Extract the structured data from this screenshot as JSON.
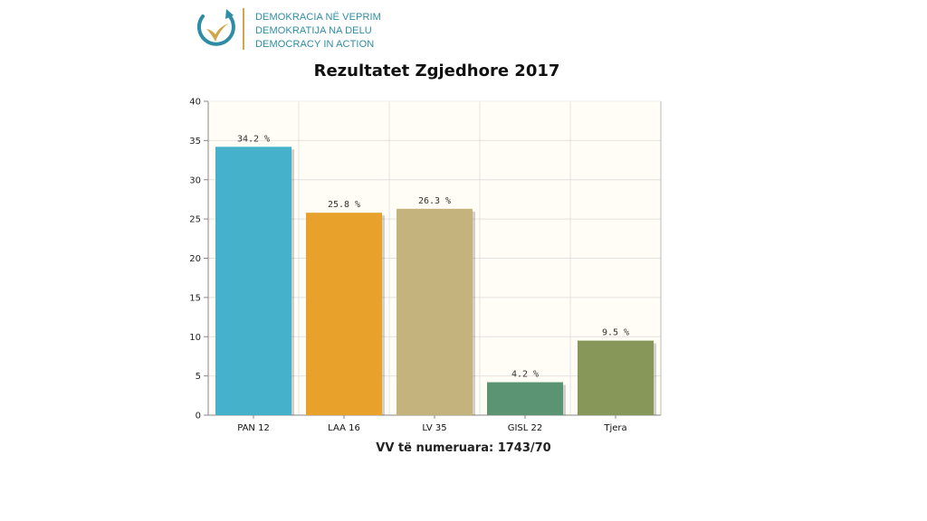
{
  "logo": {
    "icon": "circular-arrow-bird-icon",
    "lines": [
      "DEMOKRACIA NË VEPRIM",
      "DEMOKRATIJA NA DELU",
      "DEMOCRACY IN ACTION"
    ],
    "colors": {
      "ring": "#2e8da4",
      "bird": "#cfa64a",
      "text": "#2e8da4"
    }
  },
  "chart_data": {
    "type": "bar",
    "title": "Rezultatet Zgjedhore 2017",
    "xlabel": "",
    "ylabel": "",
    "categories": [
      "PAN 12",
      "LAA 16",
      "LV 35",
      "GISL 22",
      "Tjera"
    ],
    "values": [
      34.2,
      25.8,
      26.3,
      4.2,
      9.5
    ],
    "data_labels": [
      "34.2 %",
      "25.8 %",
      "26.3 %",
      "4.2 %",
      "9.5 %"
    ],
    "colors": [
      "#45b1cb",
      "#e8a22c",
      "#c4b37d",
      "#5a9473",
      "#87975a"
    ],
    "ylim": [
      0,
      40
    ],
    "yticks": [
      0,
      5,
      10,
      15,
      20,
      25,
      30,
      35,
      40
    ],
    "grid": true,
    "legend": "none",
    "plot_background": "#fffdf5"
  },
  "footer_note": "VV të numeruara: 1743/70"
}
